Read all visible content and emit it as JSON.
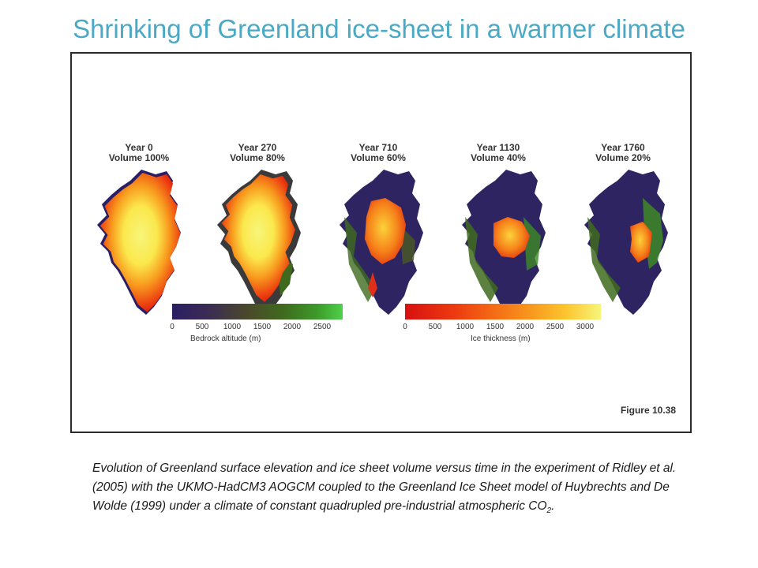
{
  "slide": {
    "title": "Shrinking of Greenland ice-sheet in a warmer climate"
  },
  "figure": {
    "panels": [
      {
        "year": "Year 0",
        "volume": "Volume 100%",
        "volume_fraction": 1.0
      },
      {
        "year": "Year 270",
        "volume": "Volume 80%",
        "volume_fraction": 0.8
      },
      {
        "year": "Year 710",
        "volume": "Volume 60%",
        "volume_fraction": 0.6
      },
      {
        "year": "Year 1130",
        "volume": "Volume 40%",
        "volume_fraction": 0.4
      },
      {
        "year": "Year 1760",
        "volume": "Volume 20%",
        "volume_fraction": 0.2
      }
    ],
    "bedrock_scale": {
      "ticks": [
        "0",
        "500",
        "1000",
        "1500",
        "2000",
        "2500"
      ],
      "title": "Bedrock altitude (m)",
      "colors": [
        "#2b1f63",
        "#3a2a55",
        "#4a4a2a",
        "#3f6a1e",
        "#3d9a2a",
        "#4fd04a"
      ]
    },
    "ice_scale": {
      "ticks": [
        "0",
        "500",
        "1000",
        "1500",
        "2000",
        "2500",
        "3000"
      ],
      "title": "Ice thickness (m)",
      "colors": [
        "#d81010",
        "#ec3a10",
        "#f46a14",
        "#f89a1e",
        "#fcc52e",
        "#fbe84c",
        "#f7f57a"
      ]
    },
    "figure_number": "Figure 10.38"
  },
  "caption": {
    "text": "Evolution of Greenland surface elevation and ice sheet volume versus time in the experiment of Ridley et al. (2005) with the UKMO-HadCM3 AOGCM coupled to the Greenland Ice Sheet model of Huybrechts and De Wolde (1999) under a climate of constant quadrupled pre-industrial atmospheric CO",
    "subscript": "2",
    "end": "."
  }
}
